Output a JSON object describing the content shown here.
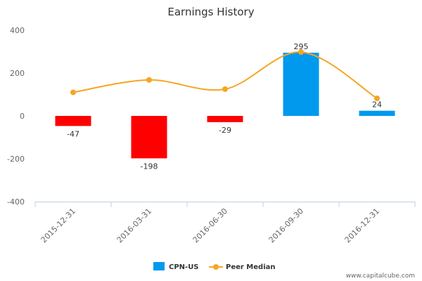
{
  "chart_data": {
    "type": "bar",
    "title": "Earnings History",
    "categories": [
      "2015-12-31",
      "2016-03-31",
      "2016-06-30",
      "2016-09-30",
      "2016-12-31"
    ],
    "ylim": [
      -400,
      400
    ],
    "yticks": [
      -400,
      -200,
      0,
      200,
      400
    ],
    "grid": false,
    "legend_position": "bottom",
    "series": [
      {
        "name": "CPN-US",
        "type": "bar",
        "values": [
          -47,
          -198,
          -29,
          295,
          24
        ],
        "data_labels": [
          "-47",
          "-198",
          "-29",
          "295",
          "24"
        ],
        "negative_color": "#ff0000",
        "positive_color": "#0099ee"
      },
      {
        "name": "Peer Median",
        "type": "line",
        "smooth": true,
        "values": [
          110,
          168,
          125,
          298,
          82
        ],
        "color": "#f5a623"
      }
    ]
  },
  "credit": "www.capitalcube.com"
}
